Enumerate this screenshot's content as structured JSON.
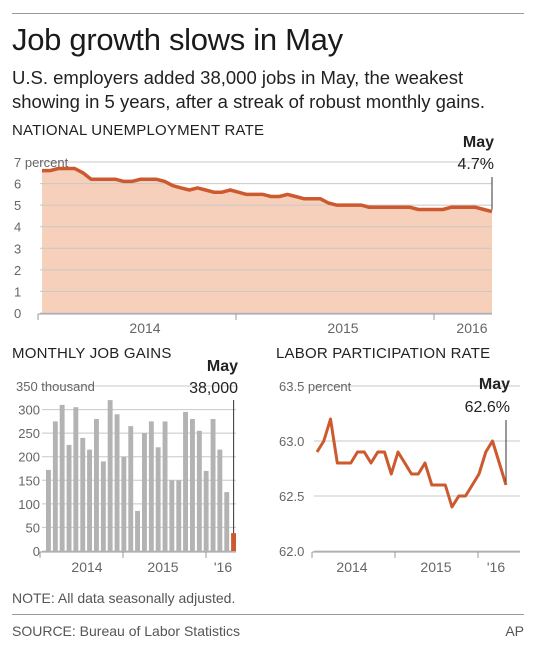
{
  "header": {
    "title": "Job growth slows in May",
    "subtitle": "U.S. employers added 38,000 jobs in May, the weakest showing in 5 years, after a streak of robust monthly gains."
  },
  "colors": {
    "accent": "#cc5a2e",
    "area_fill": "#f7d0bc",
    "bar_gray": "#b3b3b3",
    "grid": "#c8c8c8"
  },
  "chart_data": [
    {
      "id": "unemployment",
      "type": "area",
      "title": "NATIONAL UNEMPLOYMENT RATE",
      "unit_label": "percent",
      "ylim": [
        0,
        7
      ],
      "yticks": [
        0,
        1,
        2,
        3,
        4,
        5,
        6,
        7
      ],
      "ytick_labels": [
        "0",
        "1",
        "2",
        "3",
        "4",
        "5",
        "6",
        "7 percent"
      ],
      "x_tick_labels": [
        "2014",
        "2015",
        "2016"
      ],
      "callout": {
        "label": "May",
        "value": "4.7%"
      },
      "start": "2013-05",
      "values": [
        6.6,
        6.6,
        6.7,
        6.7,
        6.7,
        6.5,
        6.2,
        6.2,
        6.2,
        6.2,
        6.1,
        6.1,
        6.2,
        6.2,
        6.2,
        6.1,
        5.9,
        5.8,
        5.7,
        5.8,
        5.7,
        5.6,
        5.6,
        5.7,
        5.6,
        5.5,
        5.5,
        5.5,
        5.4,
        5.4,
        5.5,
        5.4,
        5.3,
        5.3,
        5.3,
        5.1,
        5.0,
        5.0,
        5.0,
        5.0,
        4.9,
        4.9,
        4.9,
        4.9,
        4.9,
        4.9,
        4.8,
        4.8,
        4.8,
        4.8,
        4.9,
        4.9,
        4.9,
        4.9,
        4.8,
        4.7
      ],
      "grid": true
    },
    {
      "id": "jobgains",
      "type": "bar",
      "title": "MONTHLY JOB GAINS",
      "unit_label": "thousand",
      "ylim": [
        0,
        350
      ],
      "yticks": [
        0,
        50,
        100,
        150,
        200,
        250,
        300,
        350
      ],
      "ytick_labels": [
        "0",
        "50",
        "100",
        "150",
        "200",
        "250",
        "300",
        "350 thousand"
      ],
      "x_tick_labels": [
        "2014",
        "2015",
        "'16"
      ],
      "callout": {
        "label": "May",
        "value": "38,000"
      },
      "values": [
        172,
        275,
        310,
        225,
        305,
        240,
        215,
        280,
        190,
        320,
        290,
        200,
        265,
        85,
        250,
        275,
        220,
        275,
        150,
        150,
        295,
        280,
        255,
        170,
        280,
        215,
        125,
        38
      ],
      "highlight_last": true,
      "grid": true
    },
    {
      "id": "participation",
      "type": "line",
      "title": "LABOR PARTICIPATION RATE",
      "unit_label": "percent",
      "ylim": [
        62.0,
        63.5
      ],
      "yticks": [
        62.0,
        62.5,
        63.0,
        63.5
      ],
      "ytick_labels": [
        "62.0",
        "62.5",
        "63.0",
        "63.5 percent"
      ],
      "x_tick_labels": [
        "2014",
        "2015",
        "'16"
      ],
      "callout": {
        "label": "May",
        "value": "62.6%"
      },
      "values": [
        62.9,
        63.0,
        63.2,
        62.8,
        62.8,
        62.8,
        62.9,
        62.9,
        62.8,
        62.9,
        62.9,
        62.7,
        62.9,
        62.8,
        62.7,
        62.7,
        62.8,
        62.6,
        62.6,
        62.6,
        62.4,
        62.5,
        62.5,
        62.6,
        62.7,
        62.9,
        63.0,
        62.8,
        62.6
      ],
      "grid": true
    }
  ],
  "footer": {
    "note": "NOTE: All data seasonally adjusted.",
    "source": "SOURCE: Bureau of Labor Statistics",
    "credit": "AP"
  }
}
